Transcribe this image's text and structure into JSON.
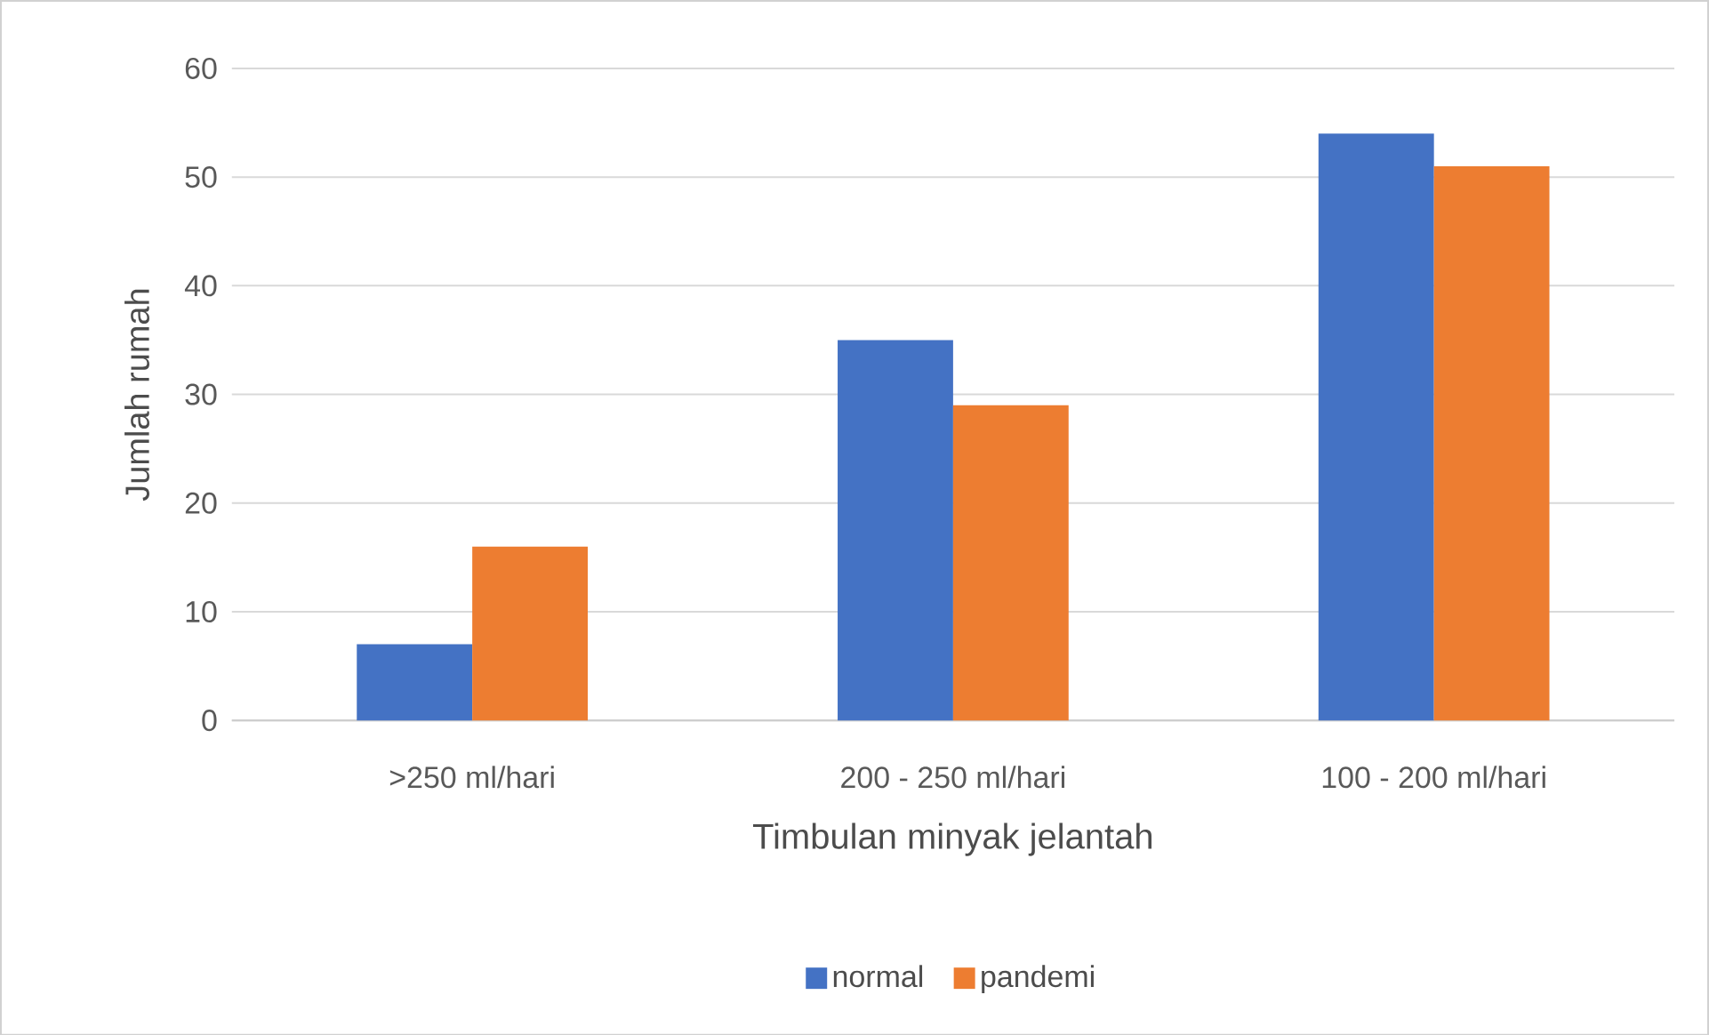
{
  "chart_data": {
    "type": "bar",
    "categories": [
      ">250 ml/hari",
      "200 - 250 ml/hari",
      "100 - 200 ml/hari"
    ],
    "xlabel": "Timbulan minyak jelantah",
    "ylabel": "Jumlah rumah",
    "series": [
      {
        "name": "normal",
        "color": "#4472c4",
        "values": [
          7,
          35,
          54
        ]
      },
      {
        "name": "pandemi",
        "color": "#ed7d31",
        "values": [
          16,
          29,
          51
        ]
      }
    ],
    "ylim": [
      0,
      60
    ],
    "yticks": [
      0,
      10,
      20,
      30,
      40,
      50,
      60
    ],
    "grid": "y",
    "legend": "bottom"
  }
}
